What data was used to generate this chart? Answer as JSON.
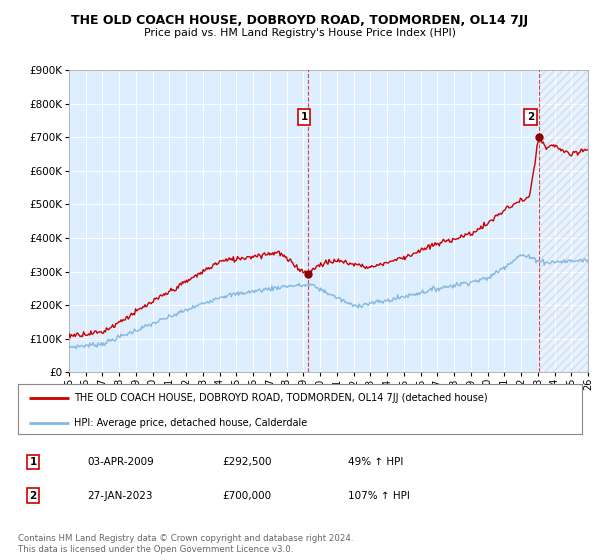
{
  "title": "THE OLD COACH HOUSE, DOBROYD ROAD, TODMORDEN, OL14 7JJ",
  "subtitle": "Price paid vs. HM Land Registry's House Price Index (HPI)",
  "ylim": [
    0,
    900000
  ],
  "yticks": [
    0,
    100000,
    200000,
    300000,
    400000,
    500000,
    600000,
    700000,
    800000,
    900000
  ],
  "x_start_year": 1995,
  "x_end_year": 2026,
  "hpi_color": "#85b8e0",
  "price_color": "#cc0000",
  "marker_color": "#8b0000",
  "grid_color": "#c8c8c8",
  "chart_bg_color": "#ddeeff",
  "bg_color": "#ffffff",
  "legend_line1": "THE OLD COACH HOUSE, DOBROYD ROAD, TODMORDEN, OL14 7JJ (detached house)",
  "legend_line2": "HPI: Average price, detached house, Calderdale",
  "transaction1_label": "1",
  "transaction1_date": "03-APR-2009",
  "transaction1_price": "£292,500",
  "transaction1_hpi": "49% ↑ HPI",
  "transaction1_year": 2009.25,
  "transaction1_value": 292500,
  "transaction2_label": "2",
  "transaction2_date": "27-JAN-2023",
  "transaction2_price": "£700,000",
  "transaction2_hpi": "107% ↑ HPI",
  "transaction2_year": 2023.07,
  "transaction2_value": 700000,
  "footer": "Contains HM Land Registry data © Crown copyright and database right 2024.\nThis data is licensed under the Open Government Licence v3.0."
}
